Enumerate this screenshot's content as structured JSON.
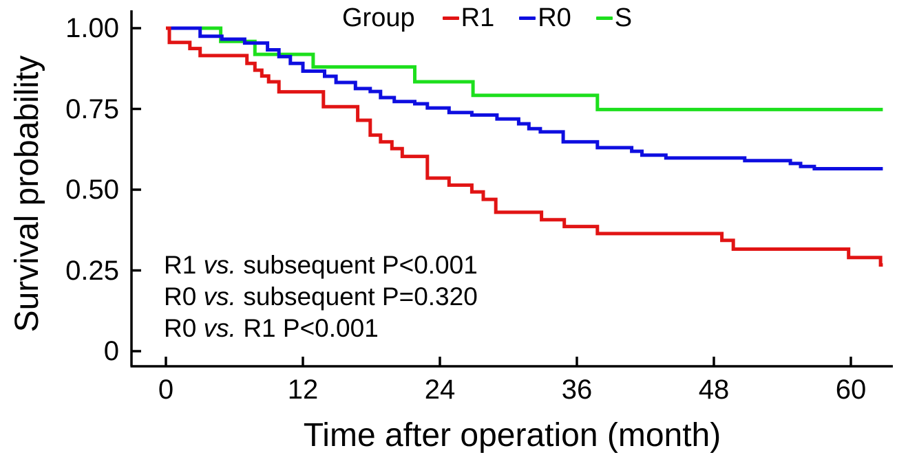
{
  "chart_data": {
    "type": "line",
    "subtype": "kaplan-meier-step",
    "title": "",
    "xlabel": "Time after operation (month)",
    "ylabel": "Survival probability",
    "xlim": [
      0,
      63.5
    ],
    "ylim": [
      0,
      1
    ],
    "grid": false,
    "legend_position": "top",
    "legend_title": "Group",
    "x_ticks": [
      {
        "value": 0,
        "label": "0"
      },
      {
        "value": 12,
        "label": "12"
      },
      {
        "value": 24,
        "label": "24"
      },
      {
        "value": 36,
        "label": "36"
      },
      {
        "value": 48,
        "label": "48"
      },
      {
        "value": 60,
        "label": "60"
      }
    ],
    "y_ticks": [
      {
        "value": 1.0,
        "label": "1.00"
      },
      {
        "value": 0.75,
        "label": "0.75"
      },
      {
        "value": 0.5,
        "label": "0.50"
      },
      {
        "value": 0.25,
        "label": "0.25"
      },
      {
        "value": 0.0,
        "label": "0"
      }
    ],
    "series": [
      {
        "name": "S",
        "color": "#1ddf1d",
        "end_month": 62.8,
        "steps": [
          [
            0,
            1.0
          ],
          [
            4.8,
            0.959
          ],
          [
            7.8,
            0.919
          ],
          [
            12.9,
            0.88
          ],
          [
            21.8,
            0.834
          ],
          [
            26.9,
            0.792
          ],
          [
            37.8,
            0.748
          ]
        ]
      },
      {
        "name": "R0",
        "color": "#0e0ee0",
        "end_month": 62.8,
        "steps": [
          [
            0,
            1.0
          ],
          [
            3.0,
            0.975
          ],
          [
            4.9,
            0.966
          ],
          [
            6.9,
            0.954
          ],
          [
            8.9,
            0.933
          ],
          [
            9.9,
            0.912
          ],
          [
            10.9,
            0.891
          ],
          [
            12.0,
            0.867
          ],
          [
            13.9,
            0.851
          ],
          [
            14.9,
            0.832
          ],
          [
            16.6,
            0.813
          ],
          [
            17.9,
            0.804
          ],
          [
            18.8,
            0.785
          ],
          [
            20.0,
            0.773
          ],
          [
            21.8,
            0.766
          ],
          [
            22.9,
            0.753
          ],
          [
            24.8,
            0.739
          ],
          [
            26.8,
            0.731
          ],
          [
            29.0,
            0.719
          ],
          [
            30.9,
            0.704
          ],
          [
            31.8,
            0.689
          ],
          [
            32.8,
            0.679
          ],
          [
            34.8,
            0.648
          ],
          [
            37.8,
            0.63
          ],
          [
            40.8,
            0.619
          ],
          [
            41.7,
            0.607
          ],
          [
            43.8,
            0.598
          ],
          [
            50.7,
            0.59
          ],
          [
            54.7,
            0.581
          ],
          [
            55.6,
            0.572
          ],
          [
            56.8,
            0.565
          ]
        ]
      },
      {
        "name": "R1",
        "color": "#e11414",
        "end_month": 62.8,
        "steps": [
          [
            0,
            1.0
          ],
          [
            0.3,
            0.956
          ],
          [
            2.1,
            0.937
          ],
          [
            3.0,
            0.915
          ],
          [
            7.1,
            0.891
          ],
          [
            7.8,
            0.87
          ],
          [
            8.4,
            0.852
          ],
          [
            9.0,
            0.834
          ],
          [
            9.9,
            0.803
          ],
          [
            13.8,
            0.757
          ],
          [
            16.8,
            0.715
          ],
          [
            17.9,
            0.669
          ],
          [
            18.8,
            0.648
          ],
          [
            19.8,
            0.627
          ],
          [
            20.7,
            0.603
          ],
          [
            22.9,
            0.536
          ],
          [
            24.8,
            0.514
          ],
          [
            26.8,
            0.493
          ],
          [
            27.8,
            0.47
          ],
          [
            28.9,
            0.43
          ],
          [
            32.9,
            0.407
          ],
          [
            34.9,
            0.386
          ],
          [
            37.8,
            0.364
          ],
          [
            48.7,
            0.343
          ],
          [
            49.7,
            0.316
          ],
          [
            59.8,
            0.29
          ],
          [
            62.6,
            0.267
          ]
        ]
      }
    ],
    "annotations": [
      {
        "left": "R1",
        "vs": "vs.",
        "right": "subsequent P<0.001"
      },
      {
        "left": "R0",
        "vs": "vs.",
        "right": "subsequent P=0.320"
      },
      {
        "left": "R0",
        "vs": "vs.",
        "right": "R1 P<0.001"
      }
    ]
  },
  "legend": {
    "title": "Group",
    "items": [
      {
        "label": "R1",
        "color": "#e11414"
      },
      {
        "label": "R0",
        "color": "#0e0ee0"
      },
      {
        "label": "S",
        "color": "#1ddf1d"
      }
    ]
  },
  "axes": {
    "x_title": "Time after operation (month)",
    "y_title": "Survival probability"
  }
}
